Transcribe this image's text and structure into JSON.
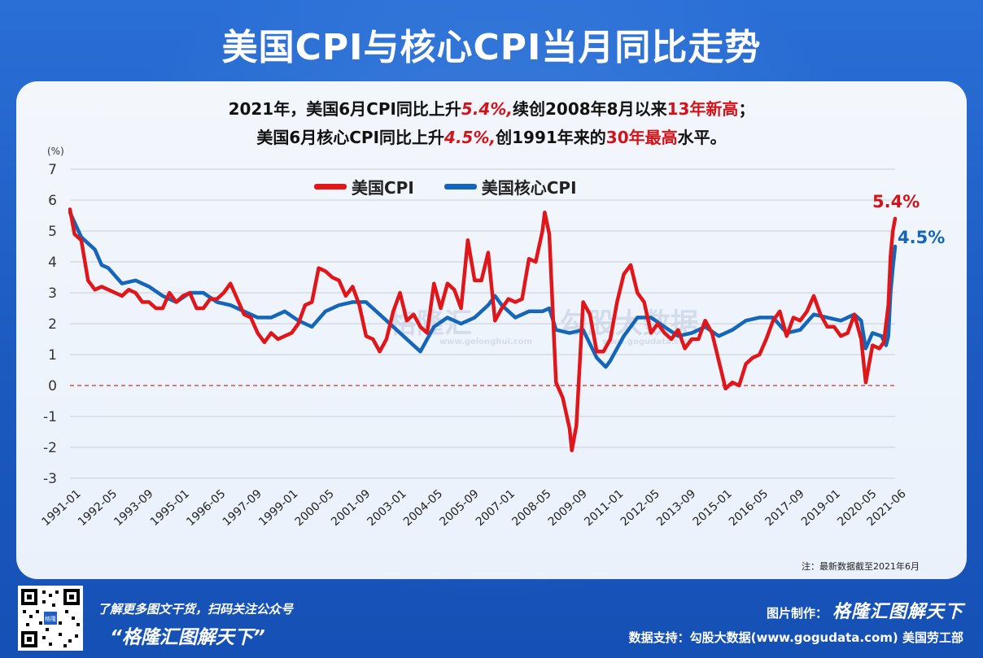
{
  "header": {
    "title": "美国CPI与核心CPI当月同比走势"
  },
  "subtitle": {
    "line1_a": "2021年，美国6月CPI同比上升",
    "line1_b": "5.4%,",
    "line1_c": "续创2008年8月以来",
    "line1_d": "13年新高",
    "line1_e": "；",
    "line2_a": "美国6月核心CPI同比上升",
    "line2_b": "4.5%,",
    "line2_c": "创1991年来的",
    "line2_d": "30年最高",
    "line2_e": "水平。"
  },
  "watermarks": {
    "brand_cn": "格隆汇",
    "brand_url": "www.gelonghui.com",
    "data_cn": "勾股大数据",
    "data_url": "www.gogudata.com"
  },
  "note": "注：最新数据截至2021年6月",
  "footer": {
    "qr_label": "格隆",
    "promo": "了解更多图文干货，扫码关注公众号",
    "account": "“格隆汇图解天下”",
    "made_by": "图片制作：",
    "brand": "格隆汇图解天下",
    "source": "数据支持：勾股大数据(www.gogudata.com) 美国劳工部"
  },
  "colors": {
    "cpi": "#e0161b",
    "core": "#1565b8",
    "zero_line": "#c0392b"
  },
  "chart_data": {
    "type": "line",
    "title": "美国CPI与核心CPI当月同比走势",
    "ylabel": "(%)",
    "xlabel": "",
    "ylim": [
      -3,
      7
    ],
    "yticks": [
      7,
      6,
      5,
      4,
      3,
      2,
      1,
      0,
      -1,
      -2,
      -3
    ],
    "ytick_labels": [
      "7",
      "6",
      "5",
      "4",
      "3",
      "2",
      "1",
      "0",
      "-1",
      "-2",
      "-3"
    ],
    "grid": true,
    "legend_position": "top-center",
    "x_start": "1991-01",
    "x_end": "2021-06",
    "xtick_labels": [
      "1991-01",
      "1992-05",
      "1993-09",
      "1995-01",
      "1996-05",
      "1997-09",
      "1999-01",
      "2000-05",
      "2001-09",
      "2003-01",
      "2004-05",
      "2005-09",
      "2007-01",
      "2008-05",
      "2009-09",
      "2011-01",
      "2012-05",
      "2013-09",
      "2015-01",
      "2016-05",
      "2017-09",
      "2019-01",
      "2020-05",
      "2021-06"
    ],
    "series": [
      {
        "name": "美国CPI",
        "end_label": "5.4%",
        "points": [
          [
            "1991-01",
            5.7
          ],
          [
            "1991-03",
            4.9
          ],
          [
            "1991-06",
            4.7
          ],
          [
            "1991-09",
            3.4
          ],
          [
            "1991-12",
            3.1
          ],
          [
            "1992-03",
            3.2
          ],
          [
            "1992-06",
            3.1
          ],
          [
            "1992-09",
            3.0
          ],
          [
            "1992-12",
            2.9
          ],
          [
            "1993-03",
            3.1
          ],
          [
            "1993-06",
            3.0
          ],
          [
            "1993-09",
            2.7
          ],
          [
            "1993-12",
            2.7
          ],
          [
            "1994-03",
            2.5
          ],
          [
            "1994-06",
            2.5
          ],
          [
            "1994-09",
            3.0
          ],
          [
            "1994-12",
            2.7
          ],
          [
            "1995-03",
            2.9
          ],
          [
            "1995-06",
            3.0
          ],
          [
            "1995-09",
            2.5
          ],
          [
            "1995-12",
            2.5
          ],
          [
            "1996-03",
            2.8
          ],
          [
            "1996-06",
            2.8
          ],
          [
            "1996-09",
            3.0
          ],
          [
            "1996-12",
            3.3
          ],
          [
            "1997-03",
            2.8
          ],
          [
            "1997-06",
            2.3
          ],
          [
            "1997-09",
            2.2
          ],
          [
            "1997-12",
            1.7
          ],
          [
            "1998-03",
            1.4
          ],
          [
            "1998-06",
            1.7
          ],
          [
            "1998-09",
            1.5
          ],
          [
            "1998-12",
            1.6
          ],
          [
            "1999-03",
            1.7
          ],
          [
            "1999-06",
            2.0
          ],
          [
            "1999-09",
            2.6
          ],
          [
            "1999-12",
            2.7
          ],
          [
            "2000-03",
            3.8
          ],
          [
            "2000-06",
            3.7
          ],
          [
            "2000-09",
            3.5
          ],
          [
            "2000-12",
            3.4
          ],
          [
            "2001-03",
            2.9
          ],
          [
            "2001-06",
            3.2
          ],
          [
            "2001-09",
            2.6
          ],
          [
            "2001-12",
            1.6
          ],
          [
            "2002-03",
            1.5
          ],
          [
            "2002-06",
            1.1
          ],
          [
            "2002-09",
            1.5
          ],
          [
            "2002-12",
            2.4
          ],
          [
            "2003-03",
            3.0
          ],
          [
            "2003-06",
            2.1
          ],
          [
            "2003-09",
            2.3
          ],
          [
            "2003-12",
            1.9
          ],
          [
            "2004-03",
            1.7
          ],
          [
            "2004-06",
            3.3
          ],
          [
            "2004-09",
            2.5
          ],
          [
            "2004-12",
            3.3
          ],
          [
            "2005-03",
            3.1
          ],
          [
            "2005-06",
            2.5
          ],
          [
            "2005-09",
            4.7
          ],
          [
            "2005-12",
            3.4
          ],
          [
            "2006-03",
            3.4
          ],
          [
            "2006-06",
            4.3
          ],
          [
            "2006-09",
            2.1
          ],
          [
            "2006-12",
            2.5
          ],
          [
            "2007-03",
            2.8
          ],
          [
            "2007-06",
            2.7
          ],
          [
            "2007-09",
            2.8
          ],
          [
            "2007-12",
            4.1
          ],
          [
            "2008-03",
            4.0
          ],
          [
            "2008-06",
            5.0
          ],
          [
            "2008-07",
            5.6
          ],
          [
            "2008-09",
            4.9
          ],
          [
            "2008-12",
            0.1
          ],
          [
            "2009-03",
            -0.4
          ],
          [
            "2009-06",
            -1.4
          ],
          [
            "2009-07",
            -2.1
          ],
          [
            "2009-09",
            -1.3
          ],
          [
            "2009-12",
            2.7
          ],
          [
            "2010-03",
            2.3
          ],
          [
            "2010-06",
            1.1
          ],
          [
            "2010-09",
            1.1
          ],
          [
            "2010-12",
            1.5
          ],
          [
            "2011-03",
            2.7
          ],
          [
            "2011-06",
            3.6
          ],
          [
            "2011-09",
            3.9
          ],
          [
            "2011-12",
            3.0
          ],
          [
            "2012-03",
            2.7
          ],
          [
            "2012-06",
            1.7
          ],
          [
            "2012-09",
            2.0
          ],
          [
            "2012-12",
            1.7
          ],
          [
            "2013-03",
            1.5
          ],
          [
            "2013-06",
            1.8
          ],
          [
            "2013-09",
            1.2
          ],
          [
            "2013-12",
            1.5
          ],
          [
            "2014-03",
            1.5
          ],
          [
            "2014-06",
            2.1
          ],
          [
            "2014-09",
            1.7
          ],
          [
            "2014-12",
            0.8
          ],
          [
            "2015-03",
            -0.1
          ],
          [
            "2015-06",
            0.1
          ],
          [
            "2015-09",
            0.0
          ],
          [
            "2015-12",
            0.7
          ],
          [
            "2016-03",
            0.9
          ],
          [
            "2016-06",
            1.0
          ],
          [
            "2016-09",
            1.5
          ],
          [
            "2016-12",
            2.1
          ],
          [
            "2017-03",
            2.4
          ],
          [
            "2017-06",
            1.6
          ],
          [
            "2017-09",
            2.2
          ],
          [
            "2017-12",
            2.1
          ],
          [
            "2018-03",
            2.4
          ],
          [
            "2018-06",
            2.9
          ],
          [
            "2018-09",
            2.3
          ],
          [
            "2018-12",
            1.9
          ],
          [
            "2019-03",
            1.9
          ],
          [
            "2019-06",
            1.6
          ],
          [
            "2019-09",
            1.7
          ],
          [
            "2019-12",
            2.3
          ],
          [
            "2020-03",
            1.5
          ],
          [
            "2020-05",
            0.1
          ],
          [
            "2020-08",
            1.3
          ],
          [
            "2020-11",
            1.2
          ],
          [
            "2021-01",
            1.4
          ],
          [
            "2021-03",
            2.6
          ],
          [
            "2021-04",
            4.2
          ],
          [
            "2021-05",
            5.0
          ],
          [
            "2021-06",
            5.4
          ]
        ]
      },
      {
        "name": "美国核心CPI",
        "end_label": "4.5%",
        "points": [
          [
            "1991-01",
            5.6
          ],
          [
            "1991-06",
            4.8
          ],
          [
            "1991-12",
            4.4
          ],
          [
            "1992-03",
            3.9
          ],
          [
            "1992-06",
            3.8
          ],
          [
            "1992-12",
            3.3
          ],
          [
            "1993-06",
            3.4
          ],
          [
            "1993-12",
            3.2
          ],
          [
            "1994-06",
            2.9
          ],
          [
            "1994-12",
            2.7
          ],
          [
            "1995-06",
            3.0
          ],
          [
            "1995-12",
            3.0
          ],
          [
            "1996-06",
            2.7
          ],
          [
            "1996-12",
            2.6
          ],
          [
            "1997-06",
            2.4
          ],
          [
            "1997-12",
            2.2
          ],
          [
            "1998-06",
            2.2
          ],
          [
            "1998-12",
            2.4
          ],
          [
            "1999-06",
            2.1
          ],
          [
            "1999-12",
            1.9
          ],
          [
            "2000-06",
            2.4
          ],
          [
            "2000-12",
            2.6
          ],
          [
            "2001-06",
            2.7
          ],
          [
            "2001-12",
            2.7
          ],
          [
            "2002-06",
            2.3
          ],
          [
            "2002-12",
            1.9
          ],
          [
            "2003-06",
            1.5
          ],
          [
            "2003-12",
            1.1
          ],
          [
            "2004-06",
            1.9
          ],
          [
            "2004-12",
            2.2
          ],
          [
            "2005-06",
            2.0
          ],
          [
            "2005-12",
            2.2
          ],
          [
            "2006-06",
            2.6
          ],
          [
            "2006-09",
            2.9
          ],
          [
            "2006-12",
            2.6
          ],
          [
            "2007-06",
            2.2
          ],
          [
            "2007-12",
            2.4
          ],
          [
            "2008-06",
            2.4
          ],
          [
            "2008-09",
            2.5
          ],
          [
            "2008-12",
            1.8
          ],
          [
            "2009-06",
            1.7
          ],
          [
            "2009-12",
            1.8
          ],
          [
            "2010-06",
            0.9
          ],
          [
            "2010-10",
            0.6
          ],
          [
            "2010-12",
            0.8
          ],
          [
            "2011-06",
            1.6
          ],
          [
            "2011-12",
            2.2
          ],
          [
            "2012-06",
            2.2
          ],
          [
            "2012-12",
            1.9
          ],
          [
            "2013-06",
            1.6
          ],
          [
            "2013-12",
            1.7
          ],
          [
            "2014-06",
            1.9
          ],
          [
            "2014-12",
            1.6
          ],
          [
            "2015-06",
            1.8
          ],
          [
            "2015-12",
            2.1
          ],
          [
            "2016-06",
            2.2
          ],
          [
            "2016-12",
            2.2
          ],
          [
            "2017-06",
            1.7
          ],
          [
            "2017-12",
            1.8
          ],
          [
            "2018-06",
            2.3
          ],
          [
            "2018-12",
            2.2
          ],
          [
            "2019-06",
            2.1
          ],
          [
            "2019-12",
            2.3
          ],
          [
            "2020-03",
            2.1
          ],
          [
            "2020-05",
            1.2
          ],
          [
            "2020-08",
            1.7
          ],
          [
            "2020-12",
            1.6
          ],
          [
            "2021-02",
            1.3
          ],
          [
            "2021-03",
            1.6
          ],
          [
            "2021-04",
            3.0
          ],
          [
            "2021-05",
            3.8
          ],
          [
            "2021-06",
            4.5
          ]
        ]
      }
    ]
  }
}
